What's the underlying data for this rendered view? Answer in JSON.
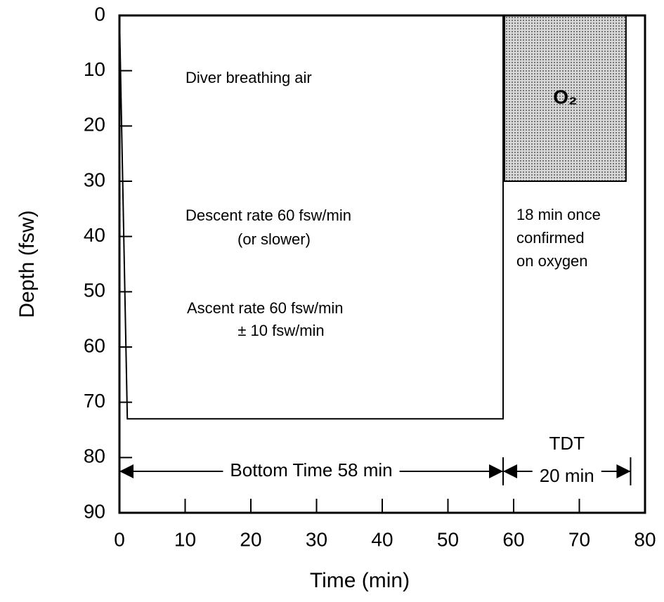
{
  "chart_data": {
    "type": "dive-profile",
    "xlabel": "Time (min)",
    "ylabel": "Depth (fsw)",
    "xlim": [
      0,
      80
    ],
    "ylim": [
      0,
      90
    ],
    "xticks": [
      0,
      10,
      20,
      30,
      40,
      50,
      60,
      70,
      80
    ],
    "yticks": [
      0,
      10,
      20,
      30,
      40,
      50,
      60,
      70,
      80,
      90
    ],
    "y_inverted": true,
    "profile": {
      "time": [
        0,
        1.2,
        58.4,
        58.4
      ],
      "depth": [
        0,
        73,
        73,
        0
      ],
      "color": "#000000"
    },
    "o2_block": {
      "label": "O₂",
      "time": [
        58.6,
        77.1
      ],
      "depth": [
        0,
        30
      ],
      "color": "#b8b8b8"
    },
    "annotations": [
      "Diver breathing air",
      "Descent rate 60 fsw/min",
      "(or slower)",
      "Ascent rate 60 fsw/min",
      "± 10 fsw/min",
      "18 min once",
      "confirmed",
      "on oxygen"
    ],
    "dimensions": [
      {
        "labels": [
          "Bottom Time 58 min"
        ],
        "time": [
          0,
          58.4
        ],
        "depth": 82.5
      },
      {
        "labels": [
          "TDT",
          "20 min"
        ],
        "time": [
          58.4,
          77.8
        ],
        "depth": 82.5
      }
    ]
  }
}
